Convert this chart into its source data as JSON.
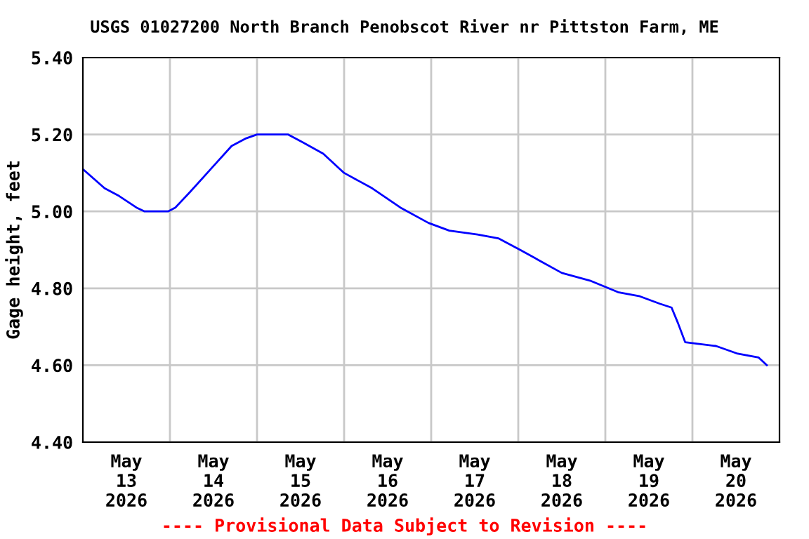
{
  "chart_data": {
    "type": "line",
    "title": "USGS 01027200 North Branch Penobscot River nr Pittston Farm, ME",
    "ylabel": "Gage height, feet",
    "annotations": [
      "---- Provisional Data Subject to Revision ----"
    ],
    "x": [
      "2026-05-13T00:00",
      "2026-05-13T06:00",
      "2026-05-13T10:00",
      "2026-05-13T14:45",
      "2026-05-13T17:00",
      "2026-05-13T23:30",
      "2026-05-14T01:30",
      "2026-05-14T05:30",
      "2026-05-14T11:15",
      "2026-05-14T17:00",
      "2026-05-14T21:00",
      "2026-05-15T00:00",
      "2026-05-15T08:30",
      "2026-05-15T12:30",
      "2026-05-15T18:15",
      "2026-05-16T00:00",
      "2026-05-16T07:45",
      "2026-05-16T15:30",
      "2026-05-16T23:15",
      "2026-05-17T05:00",
      "2026-05-17T12:45",
      "2026-05-17T18:30",
      "2026-05-18T00:30",
      "2026-05-18T06:15",
      "2026-05-18T12:00",
      "2026-05-18T19:45",
      "2026-05-19T03:30",
      "2026-05-19T09:15",
      "2026-05-19T15:00",
      "2026-05-19T18:15",
      "2026-05-19T20:00",
      "2026-05-19T22:00",
      "2026-05-20T06:30",
      "2026-05-20T12:30",
      "2026-05-20T18:15",
      "2026-05-20T20:30"
    ],
    "series": [
      {
        "color": "#0000ff",
        "values": [
          5.11,
          5.06,
          5.04,
          5.01,
          5.0,
          5.0,
          5.01,
          5.05,
          5.11,
          5.17,
          5.19,
          5.2,
          5.2,
          5.18,
          5.15,
          5.1,
          5.06,
          5.01,
          4.97,
          4.95,
          4.94,
          4.93,
          4.9,
          4.87,
          4.84,
          4.82,
          4.79,
          4.78,
          4.76,
          4.75,
          4.71,
          4.66,
          4.65,
          4.63,
          4.62,
          4.6
        ]
      }
    ],
    "xlim": [
      "2026-05-13",
      "2026-05-21"
    ],
    "xticks": [
      {
        "value": "2026-05-13T12:00",
        "label": "May\n13\n2026"
      },
      {
        "value": "2026-05-14T00:00",
        "label": null
      },
      {
        "value": "2026-05-14T12:00",
        "label": "May\n14\n2026"
      },
      {
        "value": "2026-05-15T00:00",
        "label": null
      },
      {
        "value": "2026-05-15T12:00",
        "label": "May\n15\n2026"
      },
      {
        "value": "2026-05-16T00:00",
        "label": null
      },
      {
        "value": "2026-05-16T12:00",
        "label": "May\n16\n2026"
      },
      {
        "value": "2026-05-17T00:00",
        "label": null
      },
      {
        "value": "2026-05-17T12:00",
        "label": "May\n17\n2026"
      },
      {
        "value": "2026-05-18T00:00",
        "label": null
      },
      {
        "value": "2026-05-18T12:00",
        "label": "May\n18\n2026"
      },
      {
        "value": "2026-05-19T00:00",
        "label": null
      },
      {
        "value": "2026-05-19T12:00",
        "label": "May\n19\n2026"
      },
      {
        "value": "2026-05-20T00:00",
        "label": null
      },
      {
        "value": "2026-05-20T12:00",
        "label": "May\n20\n2026"
      }
    ],
    "ylim": [
      4.4,
      5.4
    ],
    "yticks": [
      {
        "value": 4.4,
        "label": "4.40"
      },
      {
        "value": 4.6,
        "label": "4.60"
      },
      {
        "value": 4.8,
        "label": "4.80"
      },
      {
        "value": 5.0,
        "label": "5.00"
      },
      {
        "value": 5.2,
        "label": "5.20"
      },
      {
        "value": 5.4,
        "label": "5.40"
      }
    ],
    "grid": true
  }
}
